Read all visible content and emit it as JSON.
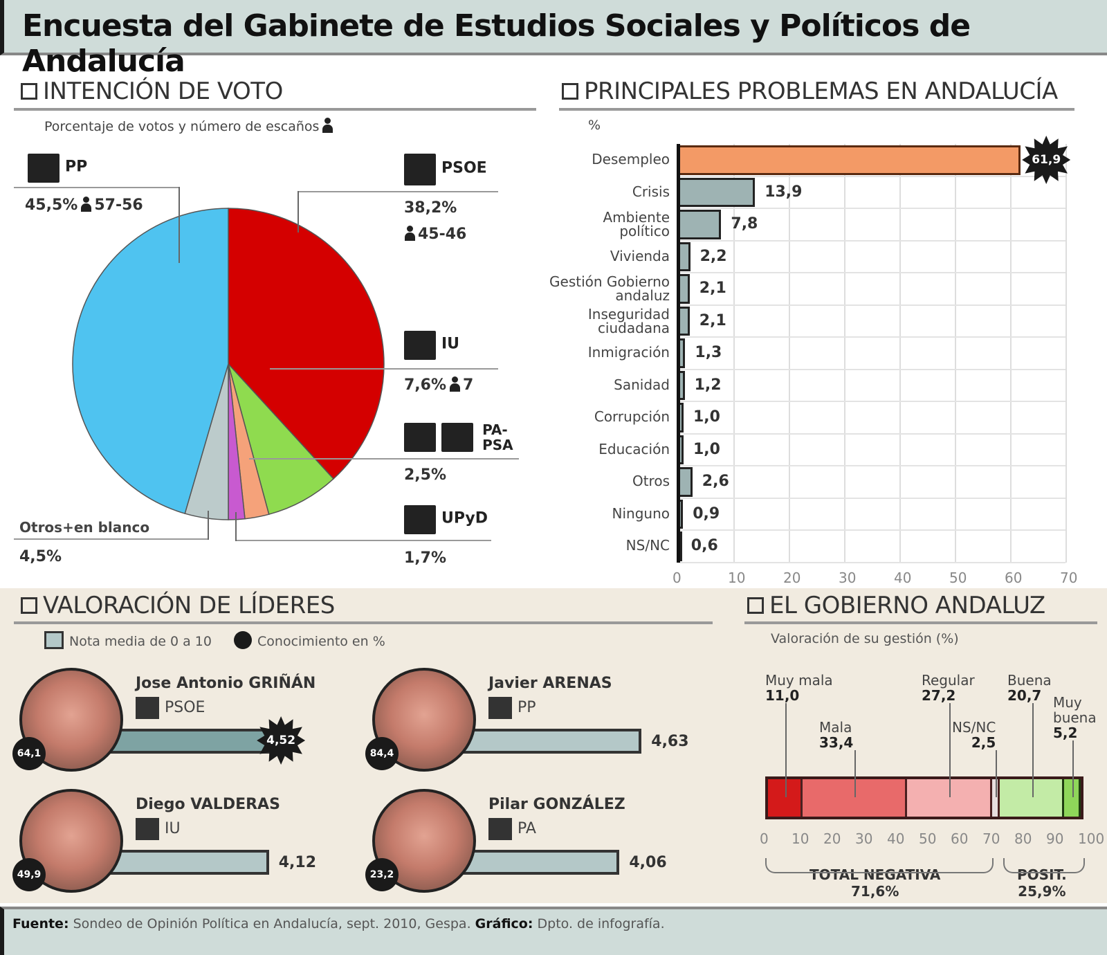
{
  "header": {
    "title": "Encuesta del Gabinete de Estudios Sociales y Políticos de Andalucía"
  },
  "vote": {
    "title": "INTENCIÓN DE VOTO",
    "subtitle": "Porcentaje de votos y número de escaños",
    "parties": [
      {
        "name": "PP",
        "pct": "45,5%",
        "seats": "57-56",
        "color": "#4fc3f0"
      },
      {
        "name": "PSOE",
        "pct": "38,2%",
        "seats": "45-46",
        "color": "#d40000"
      },
      {
        "name": "IU",
        "pct": "7,6%",
        "seats": "7",
        "color": "#8fdb4f"
      },
      {
        "name": "PA-PSA",
        "name_line1": "PA-",
        "name_line2": "PSA",
        "pct": "2,5%",
        "seats": "",
        "color": "#f5a27a"
      },
      {
        "name": "UPyD",
        "pct": "1,7%",
        "seats": "",
        "color": "#c85ad0"
      },
      {
        "name": "Otros+en blanco",
        "pct": "4,5%",
        "seats": "",
        "color": "#bccbcb"
      }
    ]
  },
  "problems": {
    "title": "PRINCIPALES PROBLEMAS EN ANDALUCÍA",
    "unit": "%",
    "items": [
      {
        "label": "Desempleo",
        "value": 61.9,
        "display": "61,9"
      },
      {
        "label": "Crisis",
        "value": 13.9,
        "display": "13,9"
      },
      {
        "label": "Ambiente político",
        "line1": "Ambiente",
        "line2": "político",
        "value": 7.8,
        "display": "7,8"
      },
      {
        "label": "Vivienda",
        "value": 2.2,
        "display": "2,2"
      },
      {
        "label": "Gestión Gobierno andaluz",
        "line1": "Gestión Gobierno",
        "line2": "andaluz",
        "value": 2.1,
        "display": "2,1"
      },
      {
        "label": "Inseguridad ciudadana",
        "line1": "Inseguridad",
        "line2": "ciudadana",
        "value": 2.1,
        "display": "2,1"
      },
      {
        "label": "Inmigración",
        "value": 1.3,
        "display": "1,3"
      },
      {
        "label": "Sanidad",
        "value": 1.2,
        "display": "1,2"
      },
      {
        "label": "Corrupción",
        "value": 1.0,
        "display": "1,0"
      },
      {
        "label": "Educación",
        "value": 1.0,
        "display": "1,0"
      },
      {
        "label": "Otros",
        "value": 2.6,
        "display": "2,6"
      },
      {
        "label": "Ninguno",
        "value": 0.9,
        "display": "0,9"
      },
      {
        "label": "NS/NC",
        "value": 0.6,
        "display": "0,6"
      }
    ],
    "ticks": [
      "0",
      "10",
      "20",
      "30",
      "40",
      "50",
      "60",
      "70"
    ]
  },
  "leaders": {
    "title": "VALORACIÓN DE LÍDERES",
    "legend_score": "Nota media de 0 a 10",
    "legend_knowledge": "Conocimiento en %",
    "items": [
      {
        "name": "Jose Antonio GRIÑÁN",
        "party": "PSOE",
        "score": "4,52",
        "score_value": 4.52,
        "knowledge": "64,1"
      },
      {
        "name": "Javier ARENAS",
        "party": "PP",
        "score": "4,63",
        "score_value": 4.63,
        "knowledge": "84,4"
      },
      {
        "name": "Diego VALDERAS",
        "party": "IU",
        "score": "4,12",
        "score_value": 4.12,
        "knowledge": "49,9"
      },
      {
        "name": "Pilar GONZÁLEZ",
        "party": "PA",
        "score": "4,06",
        "score_value": 4.06,
        "knowledge": "23,2"
      }
    ]
  },
  "government": {
    "title": "EL GOBIERNO ANDALUZ",
    "subtitle": "Valoración de su gestión (%)",
    "segments": [
      {
        "label": "Muy mala",
        "value": "11,0",
        "pct": 11.0,
        "color": "#d41a1a"
      },
      {
        "label": "Mala",
        "value": "33,4",
        "pct": 33.4,
        "color": "#e86a6a"
      },
      {
        "label": "Regular",
        "value": "27,2",
        "pct": 27.2,
        "color": "#f4b0b0"
      },
      {
        "label": "NS/NC",
        "value": "2,5",
        "pct": 2.5,
        "color": "#e8dede"
      },
      {
        "label": "Buena",
        "value": "20,7",
        "pct": 20.7,
        "color": "#c3eba6"
      },
      {
        "label": "Muy buena",
        "label1": "Muy",
        "label2": "buena",
        "value": "5,2",
        "pct": 5.2,
        "color": "#8fd65a"
      }
    ],
    "ticks": [
      "0",
      "10",
      "20",
      "30",
      "40",
      "50",
      "60",
      "70",
      "80",
      "90",
      "100"
    ],
    "total_negative_label": "TOTAL NEGATIVA",
    "total_negative_value": "71,6%",
    "total_positive_label": "POSIT.",
    "total_positive_value": "25,9%"
  },
  "footer": {
    "source_label": "Fuente:",
    "source_text": "Sondeo de Opinión Política en Andalucía, sept. 2010, Gespa.",
    "graphic_label": "Gráfico:",
    "graphic_text": "Dpto. de infografía."
  },
  "chart_data": [
    {
      "type": "pie",
      "title": "INTENCIÓN DE VOTO",
      "subtitle": "Porcentaje de votos y número de escaños",
      "categories": [
        "PP",
        "PSOE",
        "IU",
        "PA-PSA",
        "UPyD",
        "Otros+en blanco"
      ],
      "values": [
        45.5,
        38.2,
        7.6,
        2.5,
        1.7,
        4.5
      ],
      "seats": [
        "57-56",
        "45-46",
        "7",
        "",
        "",
        ""
      ]
    },
    {
      "type": "bar",
      "orientation": "horizontal",
      "title": "PRINCIPALES PROBLEMAS EN ANDALUCÍA",
      "xlabel": "%",
      "categories": [
        "Desempleo",
        "Crisis",
        "Ambiente político",
        "Vivienda",
        "Gestión Gobierno andaluz",
        "Inseguridad ciudadana",
        "Inmigración",
        "Sanidad",
        "Corrupción",
        "Educación",
        "Otros",
        "Ninguno",
        "NS/NC"
      ],
      "values": [
        61.9,
        13.9,
        7.8,
        2.2,
        2.1,
        2.1,
        1.3,
        1.2,
        1.0,
        1.0,
        2.6,
        0.9,
        0.6
      ],
      "xlim": [
        0,
        70
      ],
      "grid": true
    },
    {
      "type": "bar",
      "orientation": "horizontal",
      "title": "VALORACIÓN DE LÍDERES",
      "categories": [
        "Jose Antonio GRIÑÁN (PSOE)",
        "Javier ARENAS (PP)",
        "Diego VALDERAS (IU)",
        "Pilar GONZÁLEZ (PA)"
      ],
      "series": [
        {
          "name": "Nota media de 0 a 10",
          "values": [
            4.52,
            4.63,
            4.12,
            4.06
          ]
        },
        {
          "name": "Conocimiento en %",
          "values": [
            64.1,
            84.4,
            49.9,
            23.2
          ]
        }
      ]
    },
    {
      "type": "bar",
      "stacked": true,
      "title": "EL GOBIERNO ANDALUZ",
      "subtitle": "Valoración de su gestión (%)",
      "categories": [
        "Muy mala",
        "Mala",
        "Regular",
        "NS/NC",
        "Buena",
        "Muy buena"
      ],
      "values": [
        11.0,
        33.4,
        27.2,
        2.5,
        20.7,
        5.2
      ],
      "xlim": [
        0,
        100
      ],
      "annotations": [
        "TOTAL NEGATIVA 71,6%",
        "POSIT. 25,9%"
      ]
    }
  ]
}
